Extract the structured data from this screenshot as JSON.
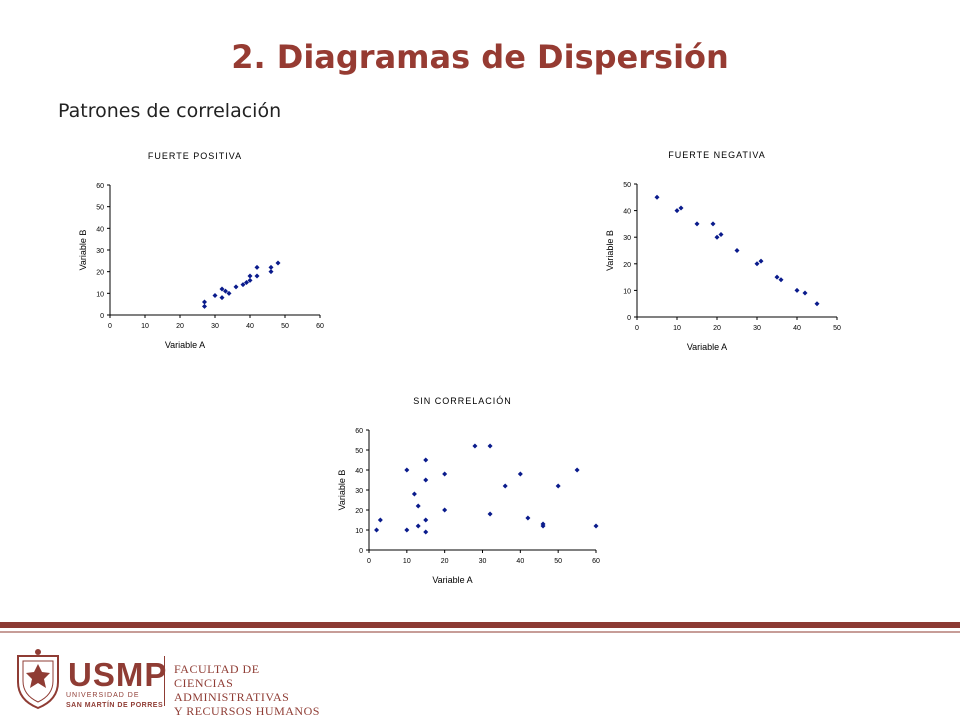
{
  "slide": {
    "title": "2. Diagramas de Dispersión",
    "subtitle": "Patrones de correlación"
  },
  "colors": {
    "title": "#963b32",
    "marker": "#0a1b8c",
    "footer_bar": "#8c3a33",
    "brand": "#8f3c34"
  },
  "footer": {
    "logo_acronym": "USMP",
    "logo_university": "UNIVERSIDAD DE",
    "logo_university2": "SAN MARTÍN DE PORRES",
    "faculty_line1": "FACULTAD DE",
    "faculty_line2": "CIENCIAS ADMINISTRATIVAS",
    "faculty_line3": "Y RECURSOS HUMANOS",
    "seal_icon": "university-seal-icon"
  },
  "chart_data": [
    {
      "type": "scatter",
      "title": "FUERTE POSITIVA",
      "xlabel": "Variable A",
      "ylabel": "Variable B",
      "xlim": [
        0,
        60
      ],
      "ylim": [
        0,
        60
      ],
      "xticks": [
        0,
        10,
        20,
        30,
        40,
        50,
        60
      ],
      "yticks": [
        0,
        10,
        20,
        30,
        40,
        50,
        60
      ],
      "grid": false,
      "points": [
        [
          27,
          4
        ],
        [
          27,
          6
        ],
        [
          30,
          9
        ],
        [
          32,
          8
        ],
        [
          32,
          12
        ],
        [
          33,
          11
        ],
        [
          34,
          10
        ],
        [
          36,
          13
        ],
        [
          38,
          14
        ],
        [
          39,
          15
        ],
        [
          40,
          16
        ],
        [
          40,
          18
        ],
        [
          42,
          18
        ],
        [
          42,
          22
        ],
        [
          46,
          20
        ],
        [
          46,
          22
        ],
        [
          48,
          24
        ]
      ]
    },
    {
      "type": "scatter",
      "title": "FUERTE NEGATIVA",
      "xlabel": "Variable A",
      "ylabel": "Variable B",
      "xlim": [
        0,
        50
      ],
      "ylim": [
        0,
        50
      ],
      "xticks": [
        0,
        10,
        20,
        30,
        40,
        50
      ],
      "yticks": [
        0,
        10,
        20,
        30,
        40,
        50
      ],
      "grid": false,
      "points": [
        [
          5,
          45
        ],
        [
          10,
          40
        ],
        [
          11,
          41
        ],
        [
          15,
          35
        ],
        [
          19,
          35
        ],
        [
          20,
          30
        ],
        [
          21,
          31
        ],
        [
          25,
          25
        ],
        [
          30,
          20
        ],
        [
          31,
          21
        ],
        [
          35,
          15
        ],
        [
          36,
          14
        ],
        [
          40,
          10
        ],
        [
          42,
          9
        ],
        [
          45,
          5
        ]
      ]
    },
    {
      "type": "scatter",
      "title": "SIN CORRELACIÓN",
      "xlabel": "Variable A",
      "ylabel": "Variable B",
      "xlim": [
        0,
        60
      ],
      "ylim": [
        0,
        60
      ],
      "xticks": [
        0,
        10,
        20,
        30,
        40,
        50,
        60
      ],
      "yticks": [
        0,
        10,
        20,
        30,
        40,
        50,
        60
      ],
      "grid": false,
      "points": [
        [
          2,
          10
        ],
        [
          3,
          15
        ],
        [
          10,
          10
        ],
        [
          10,
          40
        ],
        [
          12,
          28
        ],
        [
          13,
          22
        ],
        [
          13,
          12
        ],
        [
          15,
          45
        ],
        [
          15,
          35
        ],
        [
          15,
          15
        ],
        [
          15,
          9
        ],
        [
          20,
          38
        ],
        [
          20,
          20
        ],
        [
          28,
          52
        ],
        [
          32,
          52
        ],
        [
          32,
          18
        ],
        [
          36,
          32
        ],
        [
          40,
          38
        ],
        [
          42,
          16
        ],
        [
          46,
          13
        ],
        [
          46,
          12
        ],
        [
          50,
          32
        ],
        [
          55,
          40
        ],
        [
          60,
          12
        ]
      ]
    }
  ]
}
